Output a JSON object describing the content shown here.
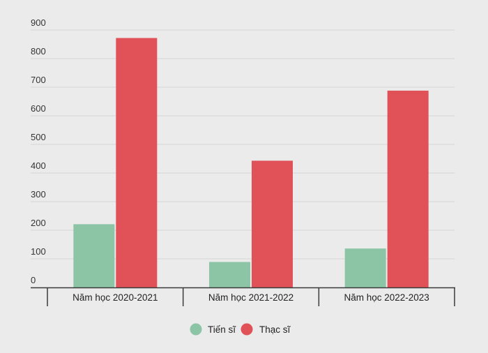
{
  "chart_data": {
    "type": "bar",
    "categories": [
      "Năm học 2020-2021",
      "Năm học 2021-2022",
      "Năm học 2022-2023"
    ],
    "series": [
      {
        "name": "Tiến sĩ",
        "color": "#8cc5a5",
        "values": [
          221,
          89,
          136
        ]
      },
      {
        "name": "Thạc sĩ",
        "color": "#e05257",
        "values": [
          872,
          443,
          688
        ]
      }
    ],
    "ylim": [
      0,
      900
    ],
    "yticks": [
      0,
      100,
      200,
      300,
      400,
      500,
      600,
      700,
      800,
      900
    ],
    "grid": true,
    "legend_position": "bottom-center",
    "title": "",
    "xlabel": "",
    "ylabel": ""
  }
}
